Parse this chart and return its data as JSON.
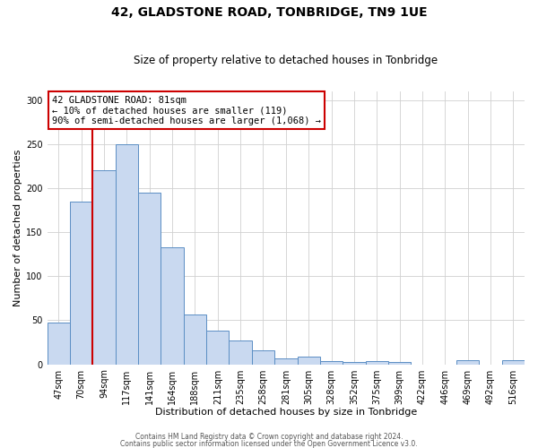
{
  "title": "42, GLADSTONE ROAD, TONBRIDGE, TN9 1UE",
  "subtitle": "Size of property relative to detached houses in Tonbridge",
  "xlabel": "Distribution of detached houses by size in Tonbridge",
  "ylabel": "Number of detached properties",
  "categories": [
    "47sqm",
    "70sqm",
    "94sqm",
    "117sqm",
    "141sqm",
    "164sqm",
    "188sqm",
    "211sqm",
    "235sqm",
    "258sqm",
    "281sqm",
    "305sqm",
    "328sqm",
    "352sqm",
    "375sqm",
    "399sqm",
    "422sqm",
    "446sqm",
    "469sqm",
    "492sqm",
    "516sqm"
  ],
  "values": [
    47,
    185,
    220,
    250,
    195,
    133,
    57,
    38,
    27,
    16,
    7,
    9,
    4,
    3,
    4,
    3,
    0,
    0,
    5,
    0,
    5
  ],
  "bar_color": "#c9d9f0",
  "bar_edge_color": "#5b8ec4",
  "bar_width": 1.0,
  "ylim": [
    0,
    310
  ],
  "yticks": [
    0,
    50,
    100,
    150,
    200,
    250,
    300
  ],
  "vline_x": 1.48,
  "vline_color": "#cc0000",
  "annotation_text": "42 GLADSTONE ROAD: 81sqm\n← 10% of detached houses are smaller (119)\n90% of semi-detached houses are larger (1,068) →",
  "annotation_box_color": "#cc0000",
  "footer_line1": "Contains HM Land Registry data © Crown copyright and database right 2024.",
  "footer_line2": "Contains public sector information licensed under the Open Government Licence v3.0.",
  "bg_color": "#ffffff",
  "grid_color": "#d0d0d0",
  "title_fontsize": 10,
  "subtitle_fontsize": 8.5,
  "tick_fontsize": 7,
  "axis_label_fontsize": 8
}
